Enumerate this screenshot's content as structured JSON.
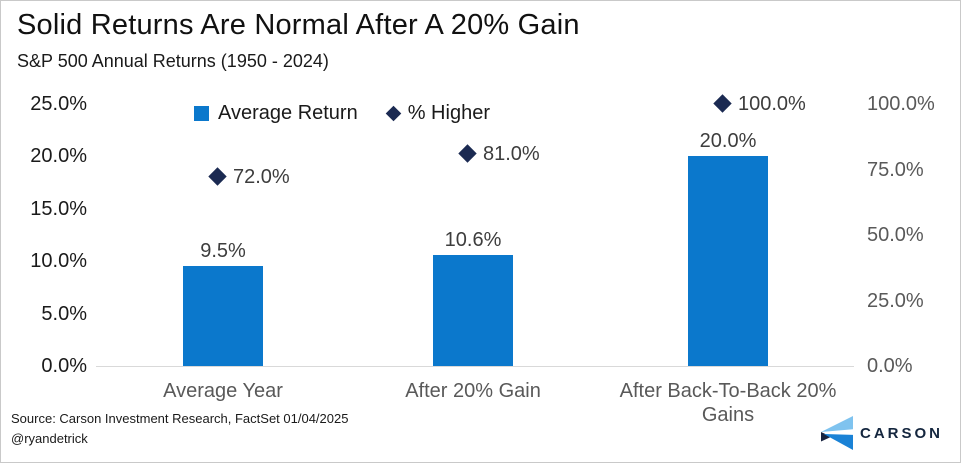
{
  "header": {
    "title": "Solid Returns Are Normal After A 20% Gain",
    "subtitle": "S&P 500 Annual Returns (1950 - 2024)"
  },
  "legend": {
    "items": [
      {
        "label": "Average Return",
        "marker": "square-icon",
        "color": "#0b78cc"
      },
      {
        "label": "% Higher",
        "marker": "diamond-icon",
        "color": "#1b2a52"
      }
    ]
  },
  "chart_data": {
    "type": "bar",
    "title": "Solid Returns Are Normal After A 20% Gain",
    "subtitle": "S&P 500 Annual Returns (1950 - 2024)",
    "categories": [
      "Average Year",
      "After 20% Gain",
      "After Back-To-Back 20% Gains"
    ],
    "series": [
      {
        "name": "Average Return",
        "type": "bar",
        "axis": "left",
        "values": [
          9.5,
          10.6,
          20.0
        ],
        "labels": [
          "9.5%",
          "10.6%",
          "20.0%"
        ],
        "color": "#0b78cc"
      },
      {
        "name": "% Higher",
        "type": "scatter",
        "marker": "diamond",
        "axis": "right",
        "values": [
          72.0,
          81.0,
          100.0
        ],
        "labels": [
          "72.0%",
          "81.0%",
          "100.0%"
        ],
        "color": "#1b2a52"
      }
    ],
    "left_axis": {
      "min": 0,
      "max": 25,
      "ticks": [
        "25.0%",
        "20.0%",
        "15.0%",
        "10.0%",
        "5.0%",
        "0.0%"
      ]
    },
    "right_axis": {
      "min": 0,
      "max": 100,
      "ticks": [
        "100.0%",
        "75.0%",
        "50.0%",
        "25.0%",
        "0.0%"
      ]
    },
    "grid": "baseline-only",
    "legend_position": "top"
  },
  "footer": {
    "source_line1": "Source: Carson Investment Research, FactSet 01/04/2025",
    "source_line2": "@ryandetrick",
    "logo_text": "CARSON"
  },
  "colors": {
    "bar_blue": "#0b78cc",
    "diamond_navy": "#1b2a52",
    "axis_gray": "#595959",
    "label_gray": "#3d3d3d",
    "baseline": "#d9d9d9",
    "logo_navy": "#14263e",
    "logo_light_blue": "#7fc3ef",
    "logo_mid_blue": "#1a82d6"
  }
}
